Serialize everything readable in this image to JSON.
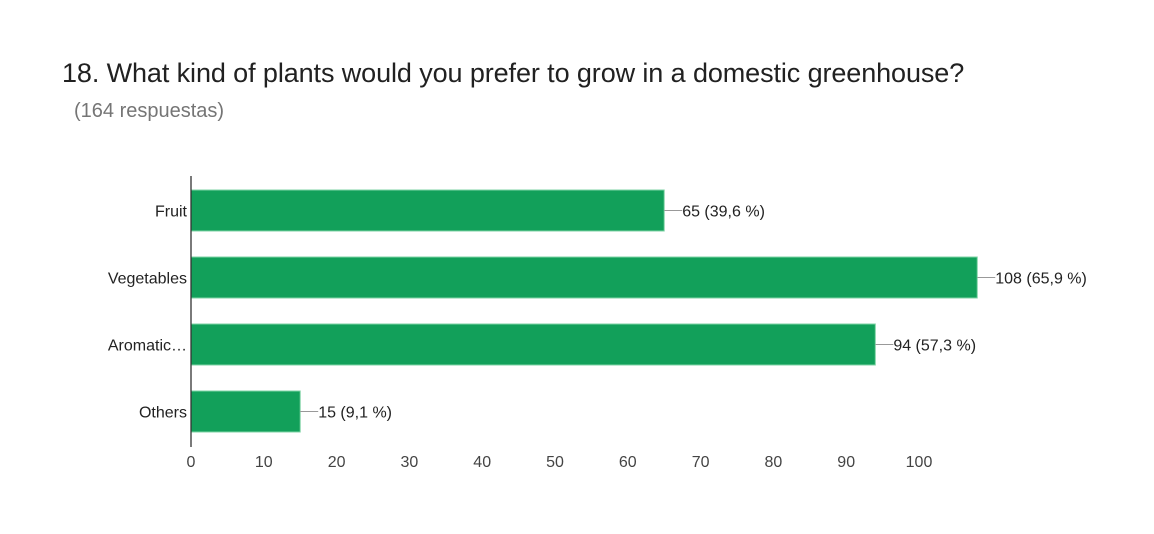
{
  "header": {
    "title": "18. What kind of plants would you prefer to grow in a domestic greenhouse?",
    "subtitle": "(164 respuestas)"
  },
  "colors": {
    "bar": "#12a05a",
    "bar_edge": "#7fd3a5",
    "axis": "#333333",
    "leader": "#999999",
    "text": "#222222"
  },
  "chart_data": {
    "type": "bar",
    "orientation": "horizontal",
    "title": "18. What kind of plants would you prefer to grow in a domestic greenhouse?",
    "subtitle": "(164 respuestas)",
    "categories": [
      "Fruit",
      "Vegetables",
      "Aromatic…",
      "Others"
    ],
    "values": [
      65,
      108,
      94,
      15
    ],
    "data_labels": [
      "65 (39,6 %)",
      "108 (65,9 %)",
      "94 (57,3 %)",
      "15 (9,1 %)"
    ],
    "xlabel": "",
    "ylabel": "",
    "xlim": [
      0,
      108
    ],
    "xticks": [
      0,
      10,
      20,
      30,
      40,
      50,
      60,
      70,
      80,
      90,
      100
    ],
    "xtick_labels": [
      "0",
      "10",
      "20",
      "30",
      "40",
      "50",
      "60",
      "70",
      "80",
      "90",
      "100"
    ],
    "grid": false,
    "legend": "none"
  }
}
